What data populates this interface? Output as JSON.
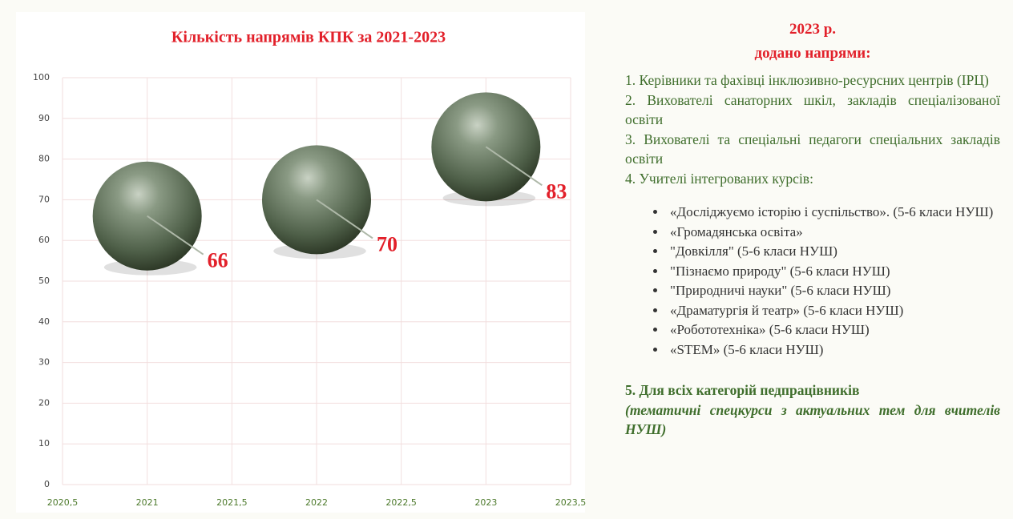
{
  "chart_data": {
    "type": "scatter",
    "title": "Кількість напрямів КПК за 2021-2023",
    "x": [
      2021,
      2022,
      2023
    ],
    "values": [
      66,
      70,
      83
    ],
    "color": "#5d7058",
    "label_color": "#e2202a",
    "xlim": [
      2020.5,
      2023.5
    ],
    "xticks": [
      {
        "value": 2020.5,
        "label": "2020,5"
      },
      2021,
      {
        "value": 2021.5,
        "label": "2021,5"
      },
      2022,
      {
        "value": 2022.5,
        "label": "2022,5"
      },
      2023,
      {
        "value": 2023.5,
        "label": "2023,5"
      }
    ],
    "ylim": [
      0,
      100
    ],
    "yticks": [
      0,
      10,
      20,
      30,
      40,
      50,
      60,
      70,
      80,
      90,
      100
    ],
    "grid": true
  },
  "panel": {
    "heading": [
      "2023 р.",
      "додано напрями:"
    ],
    "items": [
      "1. Керівники та фахівці інклюзивно-ресурсних центрів (ІРЦ)",
      "2. Вихователі санаторних шкіл, закладів спеціалізованої освіти",
      "3. Вихователі та спеціальні педагоги спеціальних закладів освіти",
      "4. Учителі інтегрованих курсів:"
    ],
    "bullets": [
      "«Досліджуємо історію і суспільство». (5-6 класи НУШ)",
      "«Громадянська освіта»",
      "\"Довкілля\" (5-6 класи НУШ)",
      "\"Пізнаємо природу\" (5-6 класи НУШ)",
      "\"Природничі науки\" (5-6 класи НУШ)",
      "«Драматургія й театр» (5-6 класи НУШ)",
      "«Робототехніка» (5-6 класи НУШ)",
      "«STEM» (5-6 класи НУШ)"
    ],
    "final": "5. Для всіх категорій педпрацівників",
    "final_note": "(тематичні спецкурси з актуальних тем для вчителів НУШ)"
  }
}
